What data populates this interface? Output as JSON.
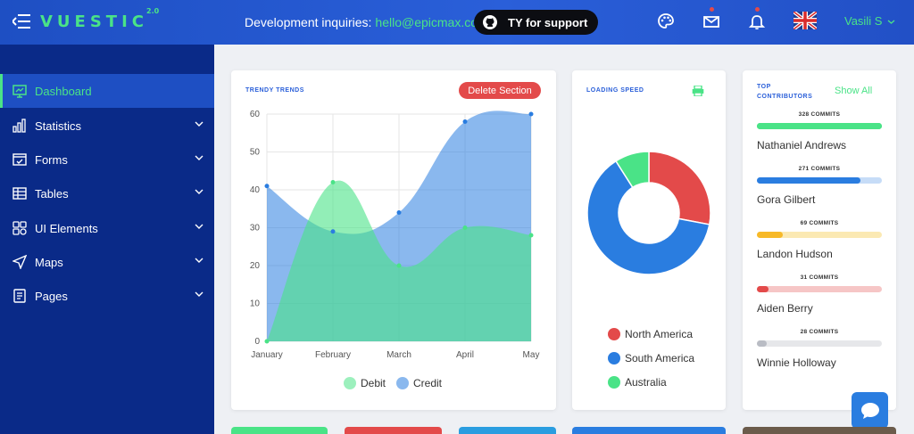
{
  "brand": {
    "logo_text": "VUESTIC",
    "version": "2.0"
  },
  "header": {
    "inquiry_label": "Development inquiries:",
    "inquiry_email": "hello@epicmax.co",
    "support_label": "TY for support",
    "user_name": "Vasili S",
    "icons": [
      "palette-icon",
      "mail-icon",
      "bell-icon",
      "uk-flag-icon"
    ]
  },
  "sidebar": {
    "items": [
      {
        "label": "Dashboard",
        "icon": "monitor-icon",
        "active": true
      },
      {
        "label": "Statistics",
        "icon": "bar-chart-icon"
      },
      {
        "label": "Forms",
        "icon": "checkbox-icon"
      },
      {
        "label": "Tables",
        "icon": "table-icon"
      },
      {
        "label": "UI Elements",
        "icon": "grid-icon"
      },
      {
        "label": "Maps",
        "icon": "send-icon"
      },
      {
        "label": "Pages",
        "icon": "pages-icon"
      }
    ]
  },
  "trends": {
    "title": "TRENDY TRENDS",
    "delete_label": "Delete Section"
  },
  "speed": {
    "title": "LOADING SPEED"
  },
  "contributors": {
    "title_line1": "TOP",
    "title_line2": "CONTRIBUTORS",
    "show_all": "Show All",
    "items": [
      {
        "commits": "328 COMMITS",
        "name": "Nathaniel Andrews",
        "fraction": 1.0,
        "color": "#4ae387",
        "track": "#4ae387"
      },
      {
        "commits": "271 COMMITS",
        "name": "Gora Gilbert",
        "fraction": 0.83,
        "color": "#2a7de0",
        "track": "#c6dcf7"
      },
      {
        "commits": "69 COMMITS",
        "name": "Landon Hudson",
        "fraction": 0.21,
        "color": "#f7b928",
        "track": "#fbe9b3"
      },
      {
        "commits": "31 COMMITS",
        "name": "Aiden Berry",
        "fraction": 0.09,
        "color": "#e34a4a",
        "track": "#f6c6c6"
      },
      {
        "commits": "28 COMMITS",
        "name": "Winnie Holloway",
        "fraction": 0.08,
        "color": "#b9bcc4",
        "track": "#e6e7ea"
      }
    ]
  },
  "colors": {
    "accent_green": "#4ae387",
    "brand_blue": "#2a5fd9",
    "danger_red": "#e34a4a"
  },
  "chart_data": [
    {
      "type": "area",
      "x": [
        "January",
        "February",
        "March",
        "April",
        "May"
      ],
      "series": [
        {
          "name": "Debit",
          "values": [
            0,
            42,
            20,
            30,
            28
          ],
          "color": "#4ae387"
        },
        {
          "name": "Credit",
          "values": [
            41,
            29,
            34,
            58,
            60
          ],
          "color": "#2a7de0"
        }
      ],
      "ylim": [
        0,
        60
      ],
      "yticks": [
        0,
        10,
        20,
        30,
        40,
        50,
        60
      ],
      "grid": true,
      "legend": "bottom"
    },
    {
      "type": "pie",
      "donut": true,
      "series": [
        {
          "name": "North America",
          "value": 28,
          "color": "#e34a4a"
        },
        {
          "name": "South America",
          "value": 63,
          "color": "#2a7de0"
        },
        {
          "name": "Australia",
          "value": 9,
          "color": "#4ae387"
        }
      ],
      "legend": "bottom"
    }
  ]
}
